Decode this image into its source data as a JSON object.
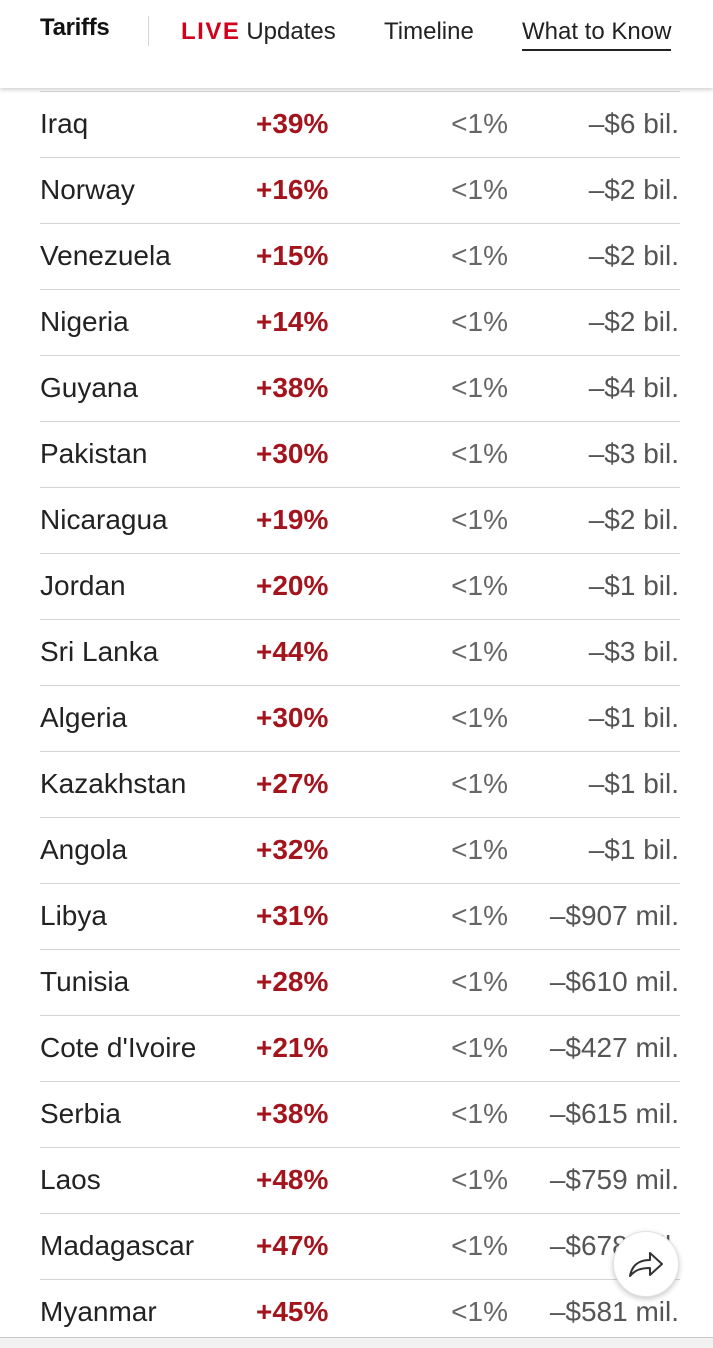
{
  "nav": {
    "brand": "Tariffs",
    "live_label": "LIVE",
    "updates_label": "Updates",
    "timeline_label": "Timeline",
    "what_to_know_label": "What to Know"
  },
  "table": {
    "rows": [
      {
        "country": "Iraq",
        "rate": "+39%",
        "share": "<1%",
        "value": "–$6 bil."
      },
      {
        "country": "Norway",
        "rate": "+16%",
        "share": "<1%",
        "value": "–$2 bil."
      },
      {
        "country": "Venezuela",
        "rate": "+15%",
        "share": "<1%",
        "value": "–$2 bil."
      },
      {
        "country": "Nigeria",
        "rate": "+14%",
        "share": "<1%",
        "value": "–$2 bil."
      },
      {
        "country": "Guyana",
        "rate": "+38%",
        "share": "<1%",
        "value": "–$4 bil."
      },
      {
        "country": "Pakistan",
        "rate": "+30%",
        "share": "<1%",
        "value": "–$3 bil."
      },
      {
        "country": "Nicaragua",
        "rate": "+19%",
        "share": "<1%",
        "value": "–$2 bil."
      },
      {
        "country": "Jordan",
        "rate": "+20%",
        "share": "<1%",
        "value": "–$1 bil."
      },
      {
        "country": "Sri Lanka",
        "rate": "+44%",
        "share": "<1%",
        "value": "–$3 bil."
      },
      {
        "country": "Algeria",
        "rate": "+30%",
        "share": "<1%",
        "value": "–$1 bil."
      },
      {
        "country": "Kazakhstan",
        "rate": "+27%",
        "share": "<1%",
        "value": "–$1 bil."
      },
      {
        "country": "Angola",
        "rate": "+32%",
        "share": "<1%",
        "value": "–$1 bil."
      },
      {
        "country": "Libya",
        "rate": "+31%",
        "share": "<1%",
        "value": "–$907 mil."
      },
      {
        "country": "Tunisia",
        "rate": "+28%",
        "share": "<1%",
        "value": "–$610 mil."
      },
      {
        "country": "Cote d'Ivoire",
        "rate": "+21%",
        "share": "<1%",
        "value": "–$427 mil."
      },
      {
        "country": "Serbia",
        "rate": "+38%",
        "share": "<1%",
        "value": "–$615 mil."
      },
      {
        "country": "Laos",
        "rate": "+48%",
        "share": "<1%",
        "value": "–$759 mil."
      },
      {
        "country": "Madagascar",
        "rate": "+47%",
        "share": "<1%",
        "value": "–$678 mil."
      },
      {
        "country": "Myanmar",
        "rate": "+45%",
        "share": "<1%",
        "value": "–$581 mil."
      }
    ]
  },
  "share_button": {
    "icon": "share-arrow-icon"
  },
  "colors": {
    "live_red": "#d0021b",
    "rate_red": "#a4141d",
    "row_divider": "#d4d4d4"
  }
}
